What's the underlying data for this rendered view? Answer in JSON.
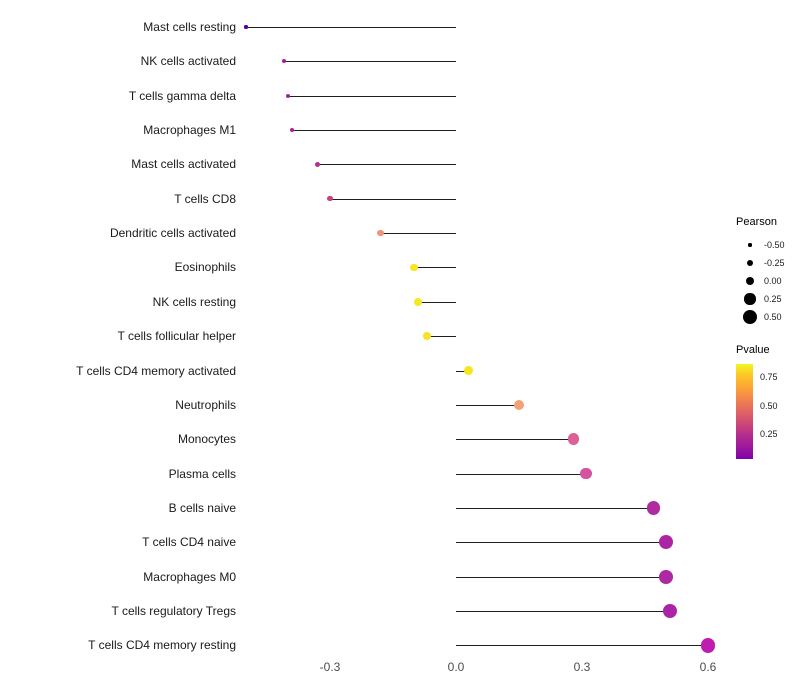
{
  "chart_data": {
    "type": "lollipop",
    "title": "",
    "xlabel": "",
    "ylabel": "",
    "xlim": [
      -0.52,
      0.65
    ],
    "grid": false,
    "x_ticks": [
      {
        "value": -0.3,
        "label": "-0.3"
      },
      {
        "value": 0.0,
        "label": "0.0"
      },
      {
        "value": 0.3,
        "label": "0.3"
      },
      {
        "value": 0.6,
        "label": "0.6"
      }
    ],
    "points": [
      {
        "label": "Mast cells resting",
        "pearson": -0.5,
        "color": "#5601a4"
      },
      {
        "label": "NK cells activated",
        "pearson": -0.41,
        "color": "#a62098"
      },
      {
        "label": "T cells gamma delta",
        "pearson": -0.4,
        "color": "#a82296"
      },
      {
        "label": "Macrophages M1",
        "pearson": -0.39,
        "color": "#aa2395"
      },
      {
        "label": "Mast cells activated",
        "pearson": -0.33,
        "color": "#b42e8c"
      },
      {
        "label": "T cells CD8",
        "pearson": -0.3,
        "color": "#c8427e"
      },
      {
        "label": "Dendritic cells activated",
        "pearson": -0.18,
        "color": "#f0927d"
      },
      {
        "label": "Eosinophils",
        "pearson": -0.1,
        "color": "#f8e621"
      },
      {
        "label": "NK cells resting",
        "pearson": -0.09,
        "color": "#f6e726"
      },
      {
        "label": "T cells follicular helper",
        "pearson": -0.07,
        "color": "#f5e324"
      },
      {
        "label": "T cells CD4 memory activated",
        "pearson": 0.03,
        "color": "#f7e521"
      },
      {
        "label": "Neutrophils",
        "pearson": 0.15,
        "color": "#f3a175"
      },
      {
        "label": "Monocytes",
        "pearson": 0.28,
        "color": "#dd6094"
      },
      {
        "label": "Plasma cells",
        "pearson": 0.31,
        "color": "#d4529e"
      },
      {
        "label": "B cells naive",
        "pearson": 0.47,
        "color": "#b02ba0"
      },
      {
        "label": "T cells CD4 naive",
        "pearson": 0.5,
        "color": "#ac26a3"
      },
      {
        "label": "Macrophages M0",
        "pearson": 0.5,
        "color": "#ae28a2"
      },
      {
        "label": "T cells regulatory  Tregs",
        "pearson": 0.51,
        "color": "#aa24a6"
      },
      {
        "label": "T cells CD4 memory resting",
        "pearson": 0.6,
        "color": "#bf1cb0"
      }
    ],
    "legend": {
      "size": {
        "title": "Pearson",
        "entries": [
          {
            "label": "-0.50",
            "value": -0.5
          },
          {
            "label": "-0.25",
            "value": -0.25
          },
          {
            "label": "0.00",
            "value": 0.0
          },
          {
            "label": "0.25",
            "value": 0.25
          },
          {
            "label": "0.50",
            "value": 0.5
          }
        ],
        "dot_color": "#000000"
      },
      "color": {
        "title": "Pvalue",
        "ticks": [
          {
            "label": "0.75",
            "pos": 0.14
          },
          {
            "label": "0.50",
            "pos": 0.44
          },
          {
            "label": "0.25",
            "pos": 0.74
          }
        ],
        "gradient_top": "#f0f921",
        "gradient_bottom": "#7e03a8"
      }
    }
  }
}
